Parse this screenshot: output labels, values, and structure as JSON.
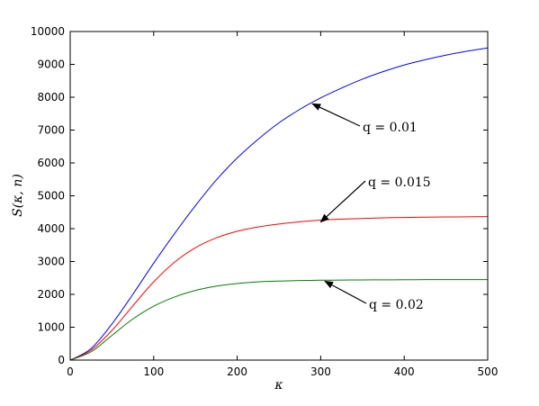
{
  "chart_data": {
    "type": "line",
    "xlabel": "κ",
    "ylabel": "S(κ, n)",
    "xlim": [
      0,
      500
    ],
    "ylim": [
      0,
      10000
    ],
    "xticks": [
      0,
      100,
      200,
      300,
      400,
      500
    ],
    "yticks": [
      0,
      1000,
      2000,
      3000,
      4000,
      5000,
      6000,
      7000,
      8000,
      9000,
      10000
    ],
    "grid": false,
    "series": [
      {
        "color": "#0000ff",
        "x": [
          0,
          25,
          50,
          75,
          100,
          125,
          150,
          175,
          200,
          225,
          250,
          275,
          300,
          325,
          350,
          375,
          400,
          425,
          450,
          475,
          500
        ],
        "y": [
          0,
          350,
          1100,
          2000,
          2950,
          3850,
          4700,
          5480,
          6150,
          6720,
          7220,
          7630,
          7980,
          8280,
          8550,
          8780,
          8980,
          9140,
          9280,
          9400,
          9500
        ]
      },
      {
        "color": "#ff0000",
        "x": [
          0,
          25,
          50,
          75,
          100,
          125,
          150,
          175,
          200,
          225,
          250,
          275,
          300,
          325,
          350,
          375,
          400,
          425,
          450,
          475,
          500
        ],
        "y": [
          0,
          300,
          900,
          1650,
          2380,
          2980,
          3420,
          3720,
          3920,
          4050,
          4140,
          4210,
          4260,
          4290,
          4310,
          4330,
          4340,
          4350,
          4355,
          4360,
          4365
        ]
      },
      {
        "color": "#008000",
        "x": [
          0,
          25,
          50,
          75,
          100,
          125,
          150,
          175,
          200,
          225,
          250,
          275,
          300,
          325,
          350,
          375,
          400,
          425,
          450,
          475,
          500
        ],
        "y": [
          0,
          250,
          750,
          1250,
          1640,
          1920,
          2120,
          2250,
          2330,
          2380,
          2405,
          2420,
          2430,
          2435,
          2440,
          2442,
          2445,
          2447,
          2448,
          2449,
          2450
        ]
      }
    ],
    "annotations": [
      {
        "text": "q = 0.01",
        "target_x": 290,
        "target_y": 7800
      },
      {
        "text": "q = 0.015",
        "target_x": 300,
        "target_y": 4200
      },
      {
        "text": "q = 0.02",
        "target_x": 305,
        "target_y": 2400
      }
    ]
  }
}
